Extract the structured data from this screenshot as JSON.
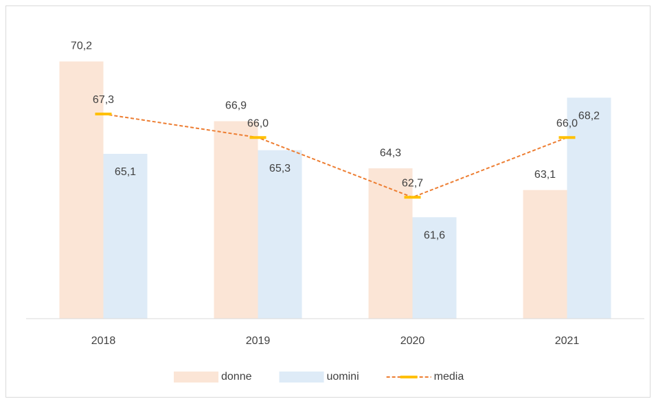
{
  "chart_data": {
    "type": "bar-line",
    "categories": [
      "2018",
      "2019",
      "2020",
      "2021"
    ],
    "series": [
      {
        "name": "donne",
        "type": "bar",
        "color": "#fbe5d6",
        "values": [
          70.2,
          66.9,
          64.3,
          63.1
        ],
        "value_labels": [
          "70,2",
          "66,9",
          "64,3",
          "63,1"
        ]
      },
      {
        "name": "uomini",
        "type": "bar",
        "color": "#deebf7",
        "values": [
          65.1,
          65.3,
          61.6,
          68.2
        ],
        "value_labels": [
          "65,1",
          "65,3",
          "61,6",
          "68,2"
        ]
      },
      {
        "name": "media",
        "type": "line",
        "color": "#ed7d31",
        "marker_color": "#ffc000",
        "values": [
          67.3,
          66.0,
          62.7,
          66.0
        ],
        "value_labels": [
          "67,3",
          "66,0",
          "62,7",
          "66,0"
        ]
      }
    ],
    "ylim": [
      56,
      72
    ],
    "legend": "bottom"
  }
}
